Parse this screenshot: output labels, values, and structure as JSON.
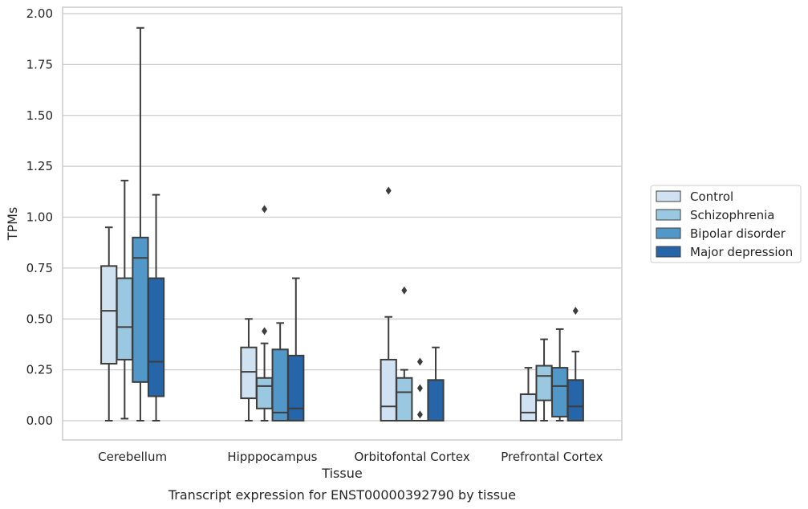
{
  "chart_data": {
    "type": "box",
    "caption": "Transcript expression for ENST00000392790 by tissue",
    "xlabel": "Tissue",
    "ylabel": "TPMs",
    "ylim": [
      -0.1,
      2.03
    ],
    "yticks": [
      "0.00",
      "0.25",
      "0.50",
      "0.75",
      "1.00",
      "1.25",
      "1.50",
      "1.75",
      "2.00"
    ],
    "grid": true,
    "legend_position": "right",
    "categories": [
      "Cerebellum",
      "Hipppocampus",
      "Orbitofontal Cortex",
      "Prefrontal Cortex"
    ],
    "series": [
      {
        "name": "Control",
        "color": "#d0e1f2",
        "boxes": [
          {
            "whislo": 0.0,
            "q1": 0.28,
            "med": 0.54,
            "q3": 0.76,
            "whishi": 0.95,
            "fliers": []
          },
          {
            "whislo": 0.0,
            "q1": 0.11,
            "med": 0.24,
            "q3": 0.36,
            "whishi": 0.5,
            "fliers": []
          },
          {
            "whislo": 0.0,
            "q1": 0.0,
            "med": 0.07,
            "q3": 0.3,
            "whishi": 0.51,
            "fliers": [
              1.13
            ]
          },
          {
            "whislo": 0.0,
            "q1": 0.0,
            "med": 0.04,
            "q3": 0.13,
            "whishi": 0.26,
            "fliers": []
          }
        ]
      },
      {
        "name": "Schizophrenia",
        "color": "#9ac8e0",
        "boxes": [
          {
            "whislo": 0.01,
            "q1": 0.3,
            "med": 0.46,
            "q3": 0.7,
            "whishi": 1.18,
            "fliers": []
          },
          {
            "whislo": 0.0,
            "q1": 0.06,
            "med": 0.17,
            "q3": 0.21,
            "whishi": 0.38,
            "fliers": [
              0.44,
              1.04
            ]
          },
          {
            "whislo": 0.0,
            "q1": 0.0,
            "med": 0.14,
            "q3": 0.21,
            "whishi": 0.25,
            "fliers": [
              0.64
            ]
          },
          {
            "whislo": 0.0,
            "q1": 0.1,
            "med": 0.22,
            "q3": 0.27,
            "whishi": 0.4,
            "fliers": []
          }
        ]
      },
      {
        "name": "Bipolar disorder",
        "color": "#5198c8",
        "boxes": [
          {
            "whislo": 0.0,
            "q1": 0.19,
            "med": 0.8,
            "q3": 0.9,
            "whishi": 1.93,
            "fliers": []
          },
          {
            "whislo": 0.0,
            "q1": 0.0,
            "med": 0.04,
            "q3": 0.35,
            "whishi": 0.48,
            "fliers": []
          },
          {
            "whislo": 0.0,
            "q1": 0.0,
            "med": 0.0,
            "q3": 0.0,
            "whishi": 0.0,
            "fliers": [
              0.03,
              0.16,
              0.29
            ]
          },
          {
            "whislo": 0.0,
            "q1": 0.02,
            "med": 0.17,
            "q3": 0.26,
            "whishi": 0.45,
            "fliers": []
          }
        ]
      },
      {
        "name": "Major depression",
        "color": "#2565a8",
        "boxes": [
          {
            "whislo": 0.0,
            "q1": 0.12,
            "med": 0.29,
            "q3": 0.7,
            "whishi": 1.11,
            "fliers": []
          },
          {
            "whislo": 0.0,
            "q1": 0.0,
            "med": 0.06,
            "q3": 0.32,
            "whishi": 0.7,
            "fliers": []
          },
          {
            "whislo": 0.0,
            "q1": 0.0,
            "med": 0.0,
            "q3": 0.2,
            "whishi": 0.36,
            "fliers": []
          },
          {
            "whislo": 0.0,
            "q1": 0.0,
            "med": 0.07,
            "q3": 0.2,
            "whishi": 0.34,
            "fliers": [
              0.54
            ]
          }
        ]
      }
    ]
  }
}
